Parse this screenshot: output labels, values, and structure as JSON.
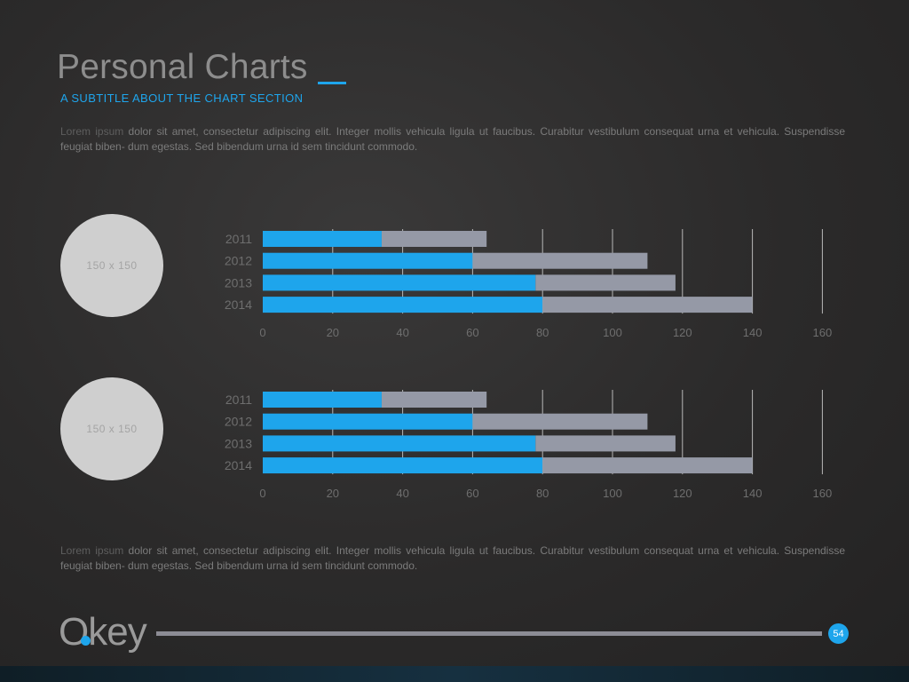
{
  "header": {
    "title": "Personal Charts",
    "subtitle": "A SUBTITLE ABOUT THE CHART SECTION"
  },
  "paragraph_top": {
    "highlight": "Lorem ipsum",
    "text": " dolor sit amet, consectetur adipiscing elit. Integer mollis vehicula ligula ut faucibus. Curabitur vestibulum consequat urna et vehicula. Suspendisse feugiat biben- dum egestas. Sed bibendum urna id sem tincidunt commodo."
  },
  "paragraph_bottom": {
    "highlight": "Lorem ipsum",
    "text": " dolor sit amet, consectetur adipiscing elit. Integer mollis vehicula ligula ut faucibus. Curabitur vestibulum consequat urna et vehicula. Suspendisse feugiat biben- dum egestas. Sed bibendum urna id sem tincidunt commodo."
  },
  "placeholders": [
    "150 x 150",
    "150 x 150"
  ],
  "colors": {
    "accent": "#1ea5ec",
    "secondary": "#9599a6",
    "axis_text": "#6e6e6e",
    "grid": "#b8b8b8"
  },
  "chart_data": [
    {
      "type": "bar",
      "orientation": "horizontal",
      "stacked": true,
      "categories": [
        "2011",
        "2012",
        "2013",
        "2014"
      ],
      "series": [
        {
          "values": [
            34,
            60,
            78,
            80
          ]
        },
        {
          "values": [
            30,
            50,
            40,
            60
          ]
        }
      ],
      "xlim": [
        0,
        160
      ],
      "xticks": [
        0,
        20,
        40,
        60,
        80,
        100,
        120,
        140,
        160
      ],
      "grid": true
    },
    {
      "type": "bar",
      "orientation": "horizontal",
      "stacked": true,
      "categories": [
        "2011",
        "2012",
        "2013",
        "2014"
      ],
      "series": [
        {
          "values": [
            34,
            60,
            78,
            80
          ]
        },
        {
          "values": [
            30,
            50,
            40,
            60
          ]
        }
      ],
      "xlim": [
        0,
        160
      ],
      "xticks": [
        0,
        20,
        40,
        60,
        80,
        100,
        120,
        140,
        160
      ],
      "grid": true
    }
  ],
  "footer": {
    "logo_text": "Okey",
    "page_number": "54"
  }
}
